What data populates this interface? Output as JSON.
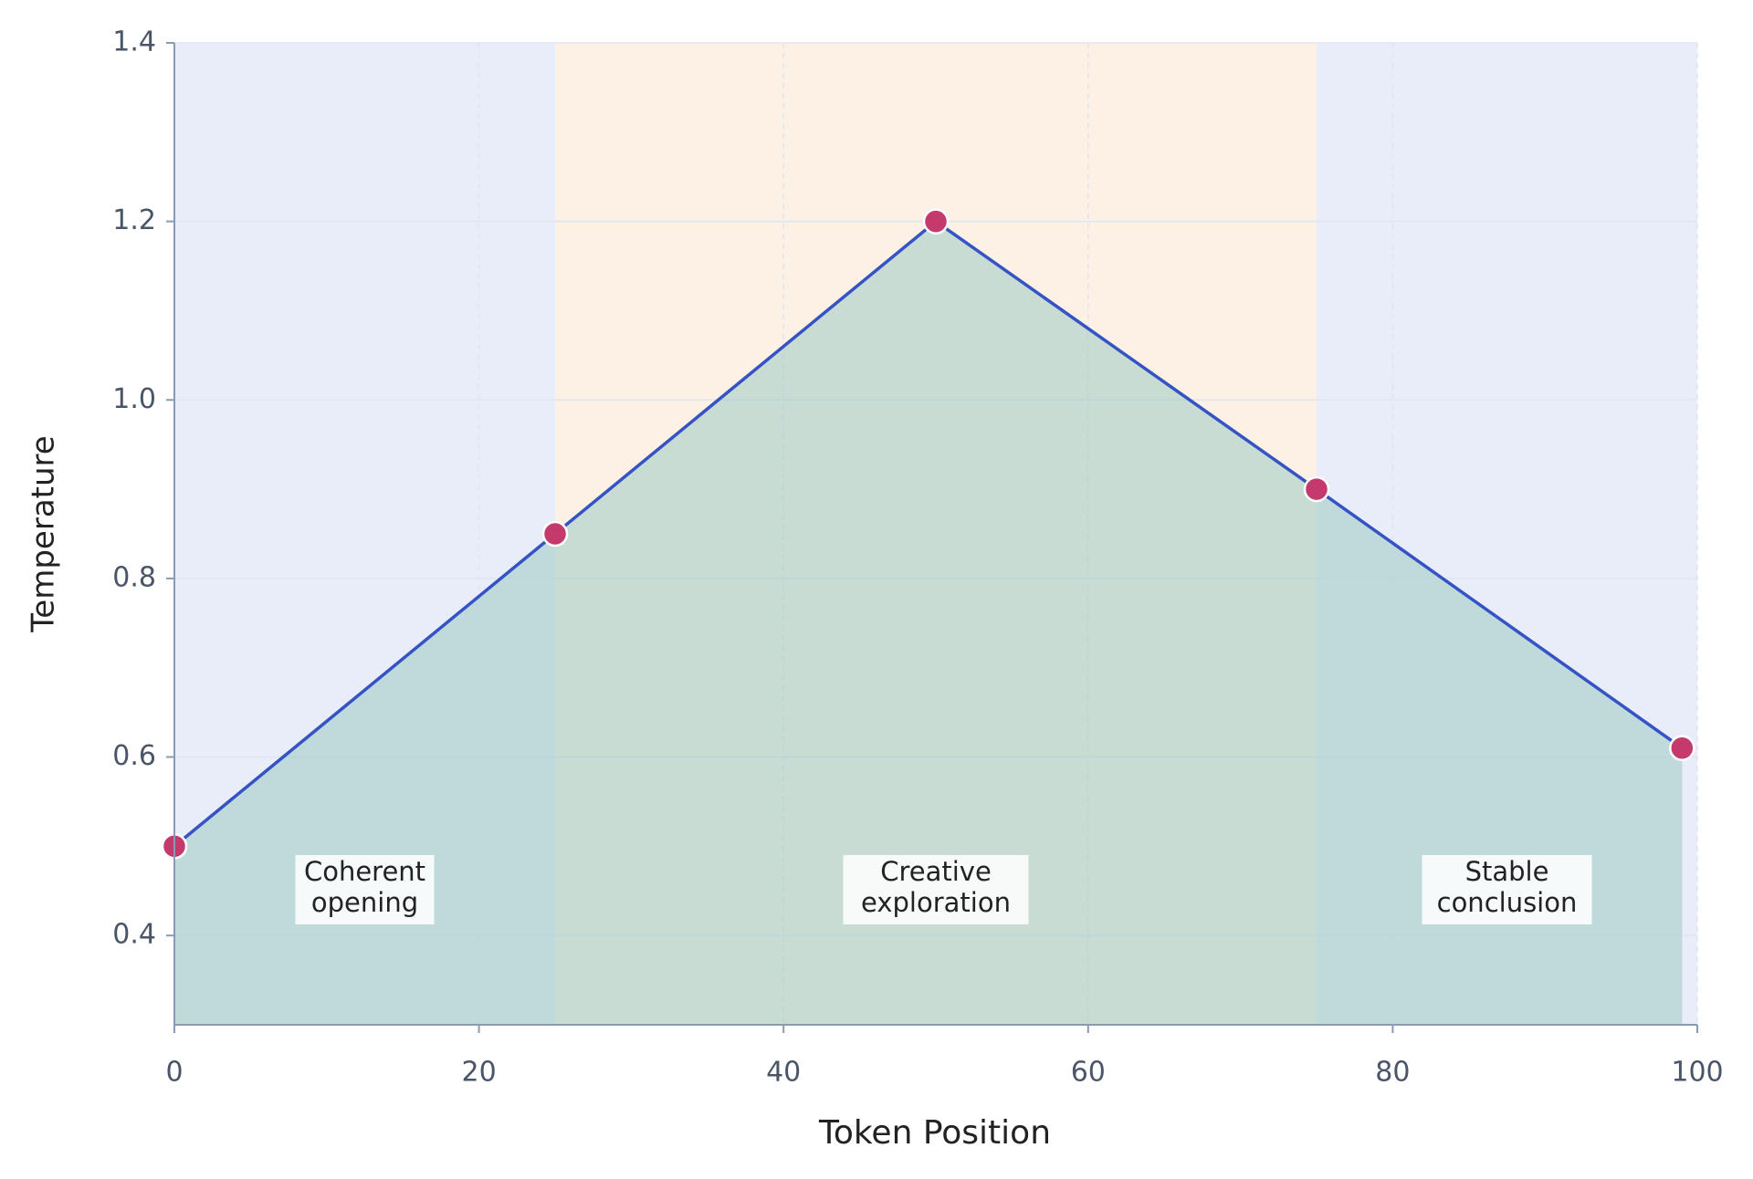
{
  "chart_data": {
    "type": "line",
    "x_label": "Token Position",
    "y_label": "Temperature",
    "x": [
      0,
      25,
      50,
      75,
      99
    ],
    "series": [
      {
        "name": "Temperature",
        "color": "#3553c4",
        "marker_color": "#c43a6c",
        "fill_color": "#9fcbc4",
        "values": [
          0.5,
          0.85,
          1.2,
          0.9,
          0.61
        ]
      }
    ],
    "xlim": [
      0,
      100
    ],
    "ylim": [
      0.3,
      1.4
    ],
    "xticks": [
      0,
      20,
      40,
      60,
      80,
      100
    ],
    "yticks": [
      0.4,
      0.6,
      0.8,
      {
        "value": 1.0,
        "label": "1.0"
      },
      1.2,
      1.4
    ],
    "grid": true,
    "regions": [
      {
        "start": 0,
        "end": 25,
        "color": "#e9edf9",
        "label": [
          "Coherent",
          "opening"
        ]
      },
      {
        "start": 25,
        "end": 75,
        "color": "#fcf1e4",
        "label": [
          "Creative",
          "exploration"
        ]
      },
      {
        "start": 75,
        "end": 100,
        "color": "#e9edf9",
        "label": [
          "Stable",
          "conclusion"
        ]
      }
    ]
  }
}
